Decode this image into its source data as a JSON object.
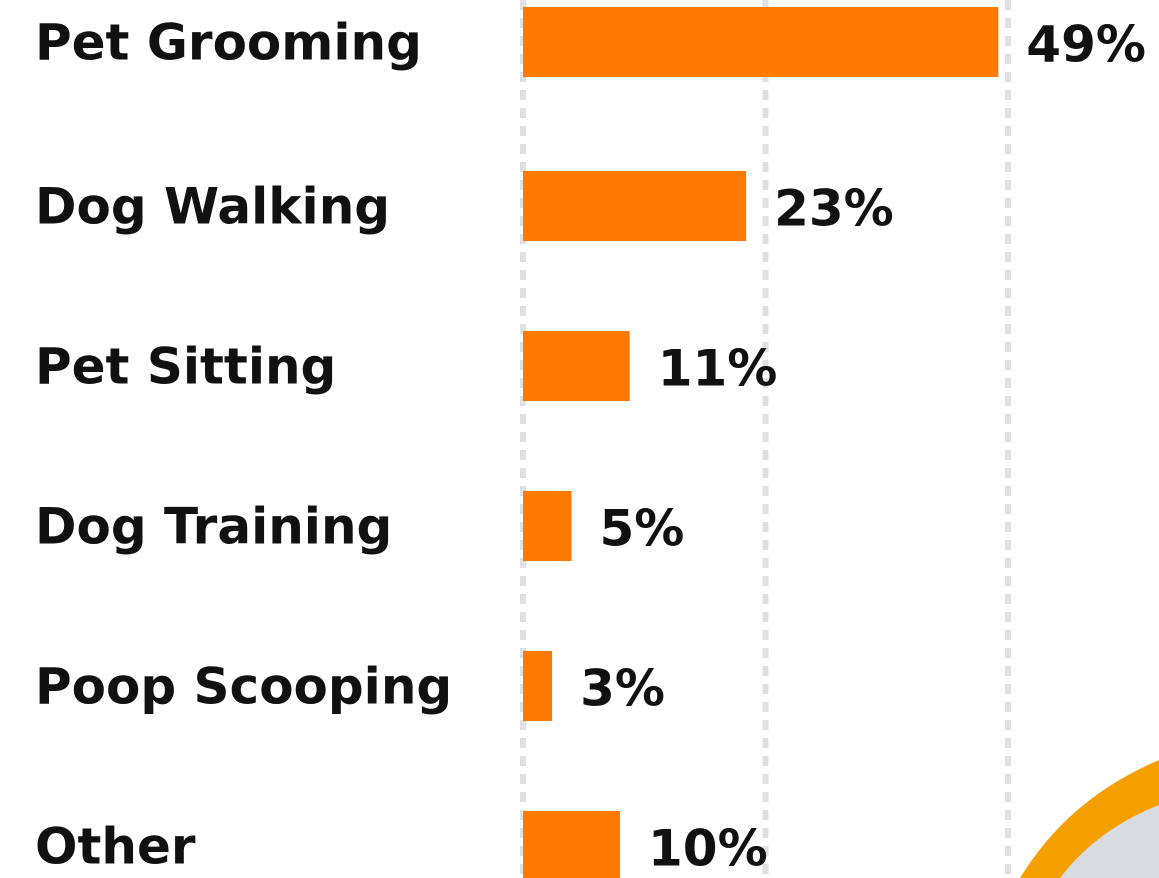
{
  "chart_data": {
    "type": "bar",
    "orientation": "horizontal",
    "categories": [
      "Pet Grooming",
      "Dog Walking",
      "Pet Sitting",
      "Dog Training",
      "Poop Scooping",
      "Other"
    ],
    "values": [
      49,
      23,
      11,
      5,
      3,
      10
    ],
    "value_labels": [
      "49%",
      "23%",
      "11%",
      "5%",
      "3%",
      "10%"
    ],
    "color": "#ff7a00",
    "xlim": [
      0,
      50
    ],
    "xticks": [
      0,
      25,
      50
    ],
    "grid": true
  }
}
